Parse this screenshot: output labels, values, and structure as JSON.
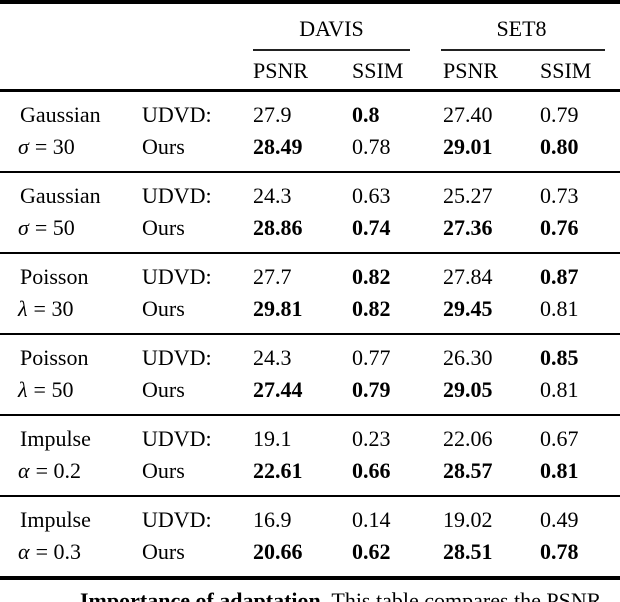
{
  "header": {
    "datasets": [
      {
        "label": "DAVIS"
      },
      {
        "label": "SET8"
      }
    ],
    "metrics": [
      "PSNR",
      "SSIM",
      "PSNR",
      "SSIM"
    ]
  },
  "table": {
    "groups": [
      {
        "noise": "Gaussian",
        "param_symbol": "σ",
        "param_rest": "= 30",
        "rows": [
          {
            "method": "UDVD:",
            "values": [
              "27.9",
              "0.8",
              "27.40",
              "0.79"
            ],
            "bold": [
              false,
              true,
              false,
              false
            ]
          },
          {
            "method": "Ours",
            "values": [
              "28.49",
              "0.78",
              "29.01",
              "0.80"
            ],
            "bold": [
              true,
              false,
              true,
              true
            ]
          }
        ]
      },
      {
        "noise": "Gaussian",
        "param_symbol": "σ",
        "param_rest": "= 50",
        "rows": [
          {
            "method": "UDVD:",
            "values": [
              "24.3",
              "0.63",
              "25.27",
              "0.73"
            ],
            "bold": [
              false,
              false,
              false,
              false
            ]
          },
          {
            "method": "Ours",
            "values": [
              "28.86",
              "0.74",
              "27.36",
              "0.76"
            ],
            "bold": [
              true,
              true,
              true,
              true
            ]
          }
        ]
      },
      {
        "noise": "Poisson",
        "param_symbol": "λ",
        "param_rest": "= 30",
        "rows": [
          {
            "method": "UDVD:",
            "values": [
              "27.7",
              "0.82",
              "27.84",
              "0.87"
            ],
            "bold": [
              false,
              true,
              false,
              true
            ]
          },
          {
            "method": "Ours",
            "values": [
              "29.81",
              "0.82",
              "29.45",
              "0.81"
            ],
            "bold": [
              true,
              true,
              true,
              false
            ]
          }
        ]
      },
      {
        "noise": "Poisson",
        "param_symbol": "λ",
        "param_rest": "= 50",
        "rows": [
          {
            "method": "UDVD:",
            "values": [
              "24.3",
              "0.77",
              "26.30",
              "0.85"
            ],
            "bold": [
              false,
              false,
              false,
              true
            ]
          },
          {
            "method": "Ours",
            "values": [
              "27.44",
              "0.79",
              "29.05",
              "0.81"
            ],
            "bold": [
              true,
              true,
              true,
              false
            ]
          }
        ]
      },
      {
        "noise": "Impulse",
        "param_symbol": "α",
        "param_rest": "= 0.2",
        "rows": [
          {
            "method": "UDVD:",
            "values": [
              "19.1",
              "0.23",
              "22.06",
              "0.67"
            ],
            "bold": [
              false,
              false,
              false,
              false
            ]
          },
          {
            "method": "Ours",
            "values": [
              "22.61",
              "0.66",
              "28.57",
              "0.81"
            ],
            "bold": [
              true,
              true,
              true,
              true
            ]
          }
        ]
      },
      {
        "noise": "Impulse",
        "param_symbol": "α",
        "param_rest": "= 0.3",
        "rows": [
          {
            "method": "UDVD:",
            "values": [
              "16.9",
              "0.14",
              "19.02",
              "0.49"
            ],
            "bold": [
              false,
              false,
              false,
              false
            ]
          },
          {
            "method": "Ours",
            "values": [
              "20.66",
              "0.62",
              "28.51",
              "0.78"
            ],
            "bold": [
              true,
              true,
              true,
              true
            ]
          }
        ]
      }
    ]
  },
  "caption": {
    "lead": "Importance of adaptation.",
    "text": " This table compares the PSNR"
  }
}
